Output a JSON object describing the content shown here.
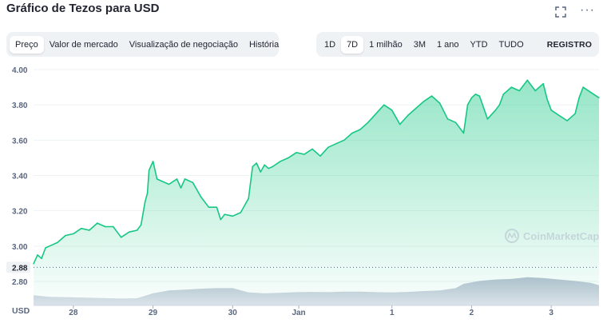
{
  "header": {
    "title": "Gráfico de Tezos para USD",
    "more_label": "···"
  },
  "tabs": [
    {
      "label": "Preço",
      "active": true
    },
    {
      "label": "Valor de mercado",
      "active": false
    },
    {
      "label": "Visualização de negociação",
      "active": false
    },
    {
      "label": "História",
      "active": false
    }
  ],
  "ranges": [
    {
      "label": "1D",
      "active": false
    },
    {
      "label": "7D",
      "active": true
    },
    {
      "label": "1 milhão",
      "active": false
    },
    {
      "label": "3M",
      "active": false
    },
    {
      "label": "1 ano",
      "active": false
    },
    {
      "label": "YTD",
      "active": false
    },
    {
      "label": "TUDO",
      "active": false
    }
  ],
  "log_label": "REGISTRO",
  "watermark": "CoinMarketCap",
  "colors": {
    "line": "#16c784",
    "fill_top": "#16c784",
    "volume": "#cfd6e4",
    "grid": "#eff2f5",
    "text": "#58667e"
  },
  "chart_data": {
    "type": "area",
    "title": "Gráfico de Tezos para USD",
    "ylabel": "USD",
    "ylim": [
      2.8,
      4.0
    ],
    "y_ticks": [
      "2.80",
      "3.00",
      "3.20",
      "3.40",
      "3.60",
      "3.80",
      "4.00"
    ],
    "x_ticks": [
      "28",
      "29",
      "30",
      "Jan",
      "1",
      "2",
      "3"
    ],
    "x_tick_positions": [
      -3.3,
      -2.3,
      -1.3,
      -0.47,
      0.7,
      1.7,
      2.7
    ],
    "x_range": [
      -3.8,
      3.3
    ],
    "open_price_label": "2.88",
    "open_price": 2.88,
    "grid": true,
    "series": [
      {
        "x": [
          -3.8,
          -3.75,
          -3.7,
          -3.65,
          -3.6,
          -3.5,
          -3.4,
          -3.3,
          -3.2,
          -3.1,
          -3.0,
          -2.9,
          -2.8,
          -2.7,
          -2.6,
          -2.5,
          -2.45,
          -2.4,
          -2.37,
          -2.35,
          -2.3,
          -2.25,
          -2.2,
          -2.1,
          -2.0,
          -1.95,
          -1.9,
          -1.8,
          -1.7,
          -1.6,
          -1.5,
          -1.45,
          -1.4,
          -1.3,
          -1.2,
          -1.1,
          -1.05,
          -1.0,
          -0.95,
          -0.9,
          -0.85,
          -0.8,
          -0.7,
          -0.6,
          -0.5,
          -0.4,
          -0.3,
          -0.2,
          -0.1,
          0.0,
          0.1,
          0.2,
          0.3,
          0.4,
          0.5,
          0.6,
          0.7,
          0.8,
          0.9,
          1.0,
          1.1,
          1.2,
          1.3,
          1.4,
          1.5,
          1.6,
          1.65,
          1.7,
          1.75,
          1.8,
          1.9,
          2.0,
          2.05,
          2.1,
          2.2,
          2.3,
          2.4,
          2.5,
          2.6,
          2.65,
          2.7,
          2.8,
          2.9,
          3.0,
          3.05,
          3.1,
          3.2,
          3.3
        ],
        "y": [
          2.9,
          2.95,
          2.93,
          2.99,
          3.0,
          3.02,
          3.06,
          3.07,
          3.1,
          3.09,
          3.13,
          3.11,
          3.11,
          3.05,
          3.08,
          3.09,
          3.12,
          3.25,
          3.3,
          3.43,
          3.48,
          3.38,
          3.37,
          3.35,
          3.38,
          3.33,
          3.38,
          3.36,
          3.28,
          3.22,
          3.22,
          3.15,
          3.18,
          3.17,
          3.19,
          3.27,
          3.45,
          3.47,
          3.42,
          3.46,
          3.44,
          3.45,
          3.48,
          3.5,
          3.53,
          3.52,
          3.55,
          3.51,
          3.56,
          3.58,
          3.6,
          3.64,
          3.66,
          3.7,
          3.75,
          3.8,
          3.77,
          3.69,
          3.74,
          3.78,
          3.82,
          3.85,
          3.81,
          3.72,
          3.7,
          3.64,
          3.8,
          3.84,
          3.86,
          3.85,
          3.72,
          3.77,
          3.8,
          3.86,
          3.9,
          3.88,
          3.94,
          3.88,
          3.92,
          3.83,
          3.77,
          3.74,
          3.71,
          3.75,
          3.84,
          3.9,
          3.87,
          3.84
        ]
      }
    ],
    "volume": {
      "x": [
        -3.8,
        -3.6,
        -3.3,
        -3.0,
        -2.7,
        -2.5,
        -2.3,
        -2.1,
        -1.9,
        -1.7,
        -1.5,
        -1.3,
        -1.1,
        -0.9,
        -0.7,
        -0.5,
        -0.3,
        -0.1,
        0.1,
        0.3,
        0.5,
        0.7,
        0.9,
        1.1,
        1.3,
        1.5,
        1.6,
        1.8,
        2.0,
        2.2,
        2.4,
        2.6,
        2.8,
        3.0,
        3.2,
        3.3
      ],
      "y": [
        0.35,
        0.3,
        0.28,
        0.26,
        0.24,
        0.25,
        0.42,
        0.52,
        0.55,
        0.58,
        0.6,
        0.6,
        0.45,
        0.42,
        0.44,
        0.46,
        0.47,
        0.46,
        0.48,
        0.48,
        0.46,
        0.45,
        0.47,
        0.5,
        0.52,
        0.6,
        0.75,
        0.85,
        0.9,
        0.92,
        0.98,
        0.95,
        0.9,
        0.85,
        0.78,
        0.7
      ]
    }
  }
}
